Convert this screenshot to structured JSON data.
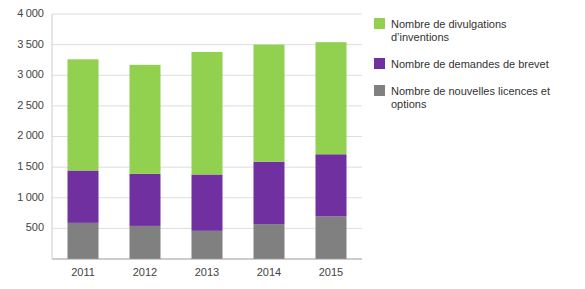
{
  "chart_data": {
    "type": "bar",
    "stacked": true,
    "grid": true,
    "legend": "right",
    "categories": [
      "2011",
      "2012",
      "2013",
      "2014",
      "2015"
    ],
    "series": [
      {
        "name": "Nombre de nouvelles licences et\noptions",
        "color": "#808080",
        "values": [
          590,
          540,
          460,
          570,
          695
        ]
      },
      {
        "name": "Nombre de demandes de brevet",
        "color": "#7030A0",
        "values": [
          855,
          850,
          920,
          1020,
          1015
        ]
      },
      {
        "name": "Nombre de divulgations\nd’inventions",
        "color": "#92D050",
        "values": [
          1815,
          1780,
          2000,
          1910,
          1830
        ]
      }
    ],
    "ylim": [
      0,
      4000
    ],
    "yticks": [
      500,
      {
        "value": 1000,
        "label": "1 000"
      },
      {
        "value": 1500,
        "label": "1 500"
      },
      {
        "value": 2000,
        "label": "2 000"
      },
      {
        "value": 2500,
        "label": "2 500"
      },
      {
        "value": 3000,
        "label": "3 000"
      },
      {
        "value": 3500,
        "label": "3 500"
      },
      {
        "value": 4000,
        "label": "4 000"
      }
    ]
  }
}
